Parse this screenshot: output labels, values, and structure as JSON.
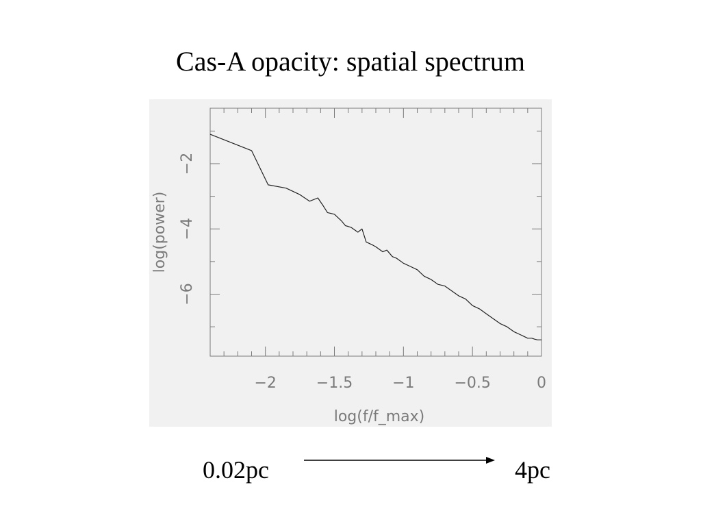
{
  "slide": {
    "title": "Cas-A opacity: spatial spectrum"
  },
  "scale_bar": {
    "left_label": "0.02pc",
    "right_label": "4pc"
  },
  "chart_data": {
    "type": "line",
    "xlabel": "log(f/f_max)",
    "ylabel": "log(power)",
    "xlim": [
      -2.4,
      0
    ],
    "ylim": [
      -7.9,
      -0.3
    ],
    "xticks": [
      -2,
      -1.5,
      -1,
      -0.5,
      0
    ],
    "xtick_labels": [
      "−2",
      "−1.5",
      "−1",
      "−0.5",
      "0"
    ],
    "yticks": [
      -2,
      -4,
      -6
    ],
    "ytick_labels": [
      "−2",
      "−4",
      "−6"
    ],
    "series": [
      {
        "x": [
          -2.4,
          -2.1,
          -1.98,
          -1.85,
          -1.75,
          -1.68,
          -1.62,
          -1.58,
          -1.55,
          -1.5,
          -1.45,
          -1.42,
          -1.38,
          -1.33,
          -1.3,
          -1.27,
          -1.22,
          -1.2,
          -1.15,
          -1.12,
          -1.08,
          -1.05,
          -1.0,
          -0.95,
          -0.9,
          -0.85,
          -0.8,
          -0.75,
          -0.7,
          -0.65,
          -0.6,
          -0.55,
          -0.5,
          -0.45,
          -0.4,
          -0.35,
          -0.3,
          -0.25,
          -0.2,
          -0.15,
          -0.1,
          -0.07,
          -0.05,
          -0.03,
          0.0
        ],
        "y": [
          -1.1,
          -1.6,
          -2.65,
          -2.75,
          -2.95,
          -3.15,
          -3.05,
          -3.3,
          -3.5,
          -3.55,
          -3.75,
          -3.9,
          -3.95,
          -4.1,
          -4.0,
          -4.4,
          -4.5,
          -4.55,
          -4.7,
          -4.65,
          -4.85,
          -4.9,
          -5.05,
          -5.15,
          -5.25,
          -5.45,
          -5.55,
          -5.7,
          -5.75,
          -5.9,
          -6.05,
          -6.15,
          -6.35,
          -6.45,
          -6.6,
          -6.75,
          -6.9,
          -7.0,
          -7.15,
          -7.25,
          -7.35,
          -7.35,
          -7.38,
          -7.4,
          -7.4
        ]
      }
    ]
  }
}
